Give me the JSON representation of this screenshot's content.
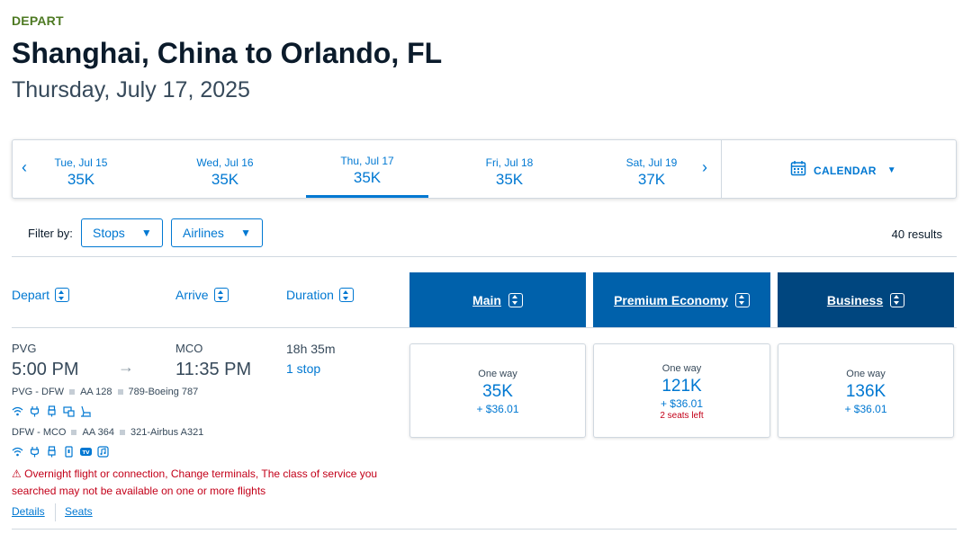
{
  "header": {
    "depart_label": "DEPART",
    "route": "Shanghai, China to Orlando, FL",
    "date": "Thursday, July 17, 2025"
  },
  "date_strip": {
    "prev_icon": "chevron-left-icon",
    "next_icon": "chevron-right-icon",
    "dates": [
      {
        "label": "Tue, Jul 15",
        "price": "35K"
      },
      {
        "label": "Wed, Jul 16",
        "price": "35K"
      },
      {
        "label": "Thu, Jul 17",
        "price": "35K",
        "active": true
      },
      {
        "label": "Fri, Jul 18",
        "price": "35K"
      },
      {
        "label": "Sat, Jul 19",
        "price": "37K"
      }
    ],
    "calendar_label": "CALENDAR"
  },
  "filter": {
    "label": "Filter by:",
    "stops": "Stops",
    "airlines": "Airlines",
    "results": "40 results"
  },
  "columns": {
    "depart": "Depart",
    "arrive": "Arrive",
    "duration": "Duration",
    "cabins": [
      {
        "label": "Main",
        "color": "#0061ab"
      },
      {
        "label": "Premium Economy",
        "color": "#0061ab"
      },
      {
        "label": "Business",
        "color": "#00467f"
      }
    ]
  },
  "flight": {
    "from": "PVG",
    "depart_time": "5:00 PM",
    "to": "MCO",
    "arrive_time": "11:35 PM",
    "duration": "18h 35m",
    "stops": "1 stop",
    "segments": [
      {
        "route": "PVG - DFW",
        "flight": "AA 128",
        "aircraft": "789-Boeing 787",
        "amenities": [
          "wifi-icon",
          "power-icon",
          "usb-icon",
          "entertainment-icon",
          "lie-flat-seat-icon"
        ]
      },
      {
        "route": "DFW - MCO",
        "flight": "AA 364",
        "aircraft": "321-Airbus A321",
        "amenities": [
          "wifi-icon",
          "power-icon",
          "usb-icon",
          "phone-icon",
          "tv-icon",
          "music-icon"
        ]
      }
    ],
    "warning": "Overnight flight or connection, Change terminals, The class of service you searched may not be available on one or more flights",
    "links": {
      "details": "Details",
      "seats": "Seats"
    },
    "fares": [
      {
        "one_way": "One way",
        "points": "35K",
        "tax": "+ $36.01",
        "seats_left": ""
      },
      {
        "one_way": "One way",
        "points": "121K",
        "tax": "+ $36.01",
        "seats_left": "2 seats left"
      },
      {
        "one_way": "One way",
        "points": "136K",
        "tax": "+ $36.01",
        "seats_left": ""
      }
    ]
  },
  "colors": {
    "accent": "#0078d2",
    "depart_green": "#4e7a23",
    "warning_red": "#c30019"
  }
}
